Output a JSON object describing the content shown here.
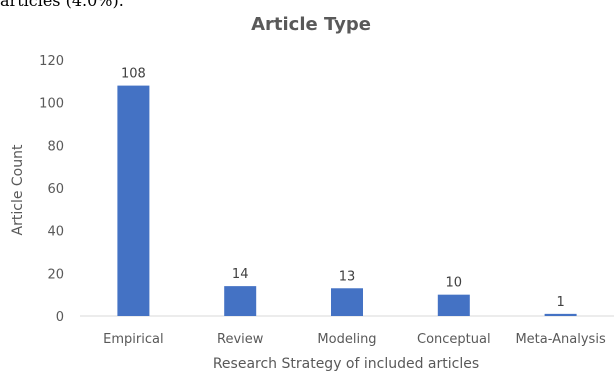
{
  "header_text": "articles (4.0%).",
  "chart_data": {
    "type": "bar",
    "title": "Article Type",
    "xlabel": "Research Strategy of included articles",
    "ylabel": "Article Count",
    "categories": [
      "Empirical",
      "Review",
      "Modeling",
      "Conceptual",
      "Meta-Analysis"
    ],
    "values": [
      108,
      14,
      13,
      10,
      1
    ],
    "data_labels": [
      "108",
      "14",
      "13",
      "10",
      "1"
    ],
    "ylim": [
      0,
      120
    ],
    "yticks": [
      0,
      20,
      40,
      60,
      80,
      100,
      120
    ],
    "grid": false,
    "legend": "none",
    "bar_color": "#4472C4",
    "axis_color": "#D9D9D9",
    "text_color": "#595959"
  }
}
